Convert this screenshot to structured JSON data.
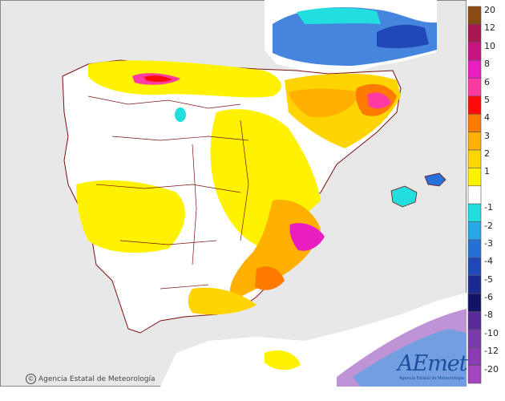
{
  "legend": {
    "labels": [
      "20",
      "12",
      "10",
      "8",
      "6",
      "5",
      "4",
      "3",
      "2",
      "1",
      "-1",
      "-2",
      "-3",
      "-4",
      "-5",
      "-6",
      "-8",
      "-10",
      "-12",
      "-20"
    ],
    "colors_positive": [
      "#8b4a12",
      "#a8174f",
      "#c81482",
      "#ea1ec0",
      "#ff3aa2",
      "#ff0a0a",
      "#ff7a00",
      "#ffb000",
      "#ffd400",
      "#fff200"
    ],
    "color_neutral": "#ffffff",
    "colors_negative": [
      "#22dede",
      "#28a8e8",
      "#2670d8",
      "#2048b8",
      "#1a2a92",
      "#141466",
      "#5a2a9a",
      "#7a3aac",
      "#8a3cb4",
      "#a446c0"
    ]
  },
  "credit": {
    "symbol": "©",
    "text": "Agencia Estatal de Meteorología"
  },
  "logo": {
    "text": "AEmet",
    "subtitle": "Agencia Estatal de Meteorología"
  },
  "colors": {
    "sea": "#e8e8e8",
    "land": "#ffffff",
    "border": "#7a1010"
  }
}
